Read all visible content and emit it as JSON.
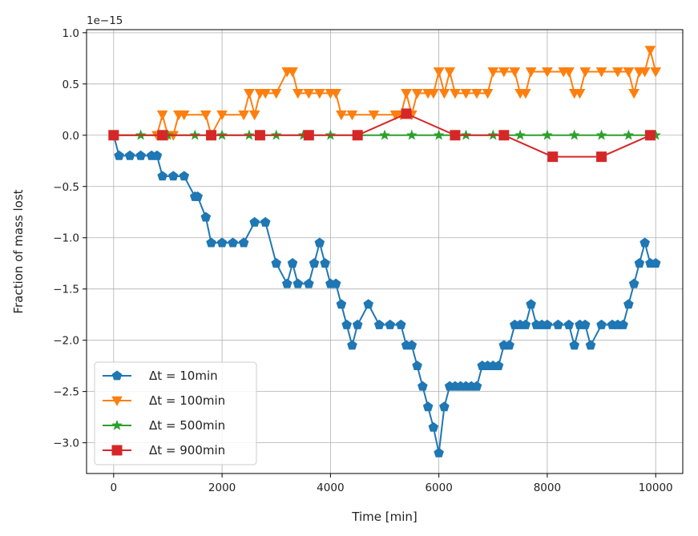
{
  "chart_data": {
    "type": "line",
    "xlabel": "Time [min]",
    "ylabel": "Fraction of mass lost",
    "offset_text": "1e−15",
    "xlim": [
      -500,
      10500
    ],
    "ylim": [
      -3.3,
      1.03
    ],
    "xticks": [
      0,
      2000,
      4000,
      6000,
      8000,
      10000
    ],
    "xtick_labels": [
      "0",
      "2000",
      "4000",
      "6000",
      "8000",
      "10000"
    ],
    "yticks": [
      1.0,
      0.5,
      0.0,
      -0.5,
      -1.0,
      -1.5,
      -2.0,
      -2.5,
      -3.0
    ],
    "ytick_labels": [
      "1.0",
      "0.5",
      "0.0",
      "−0.5",
      "−1.0",
      "−1.5",
      "−2.0",
      "−2.5",
      "−3.0"
    ],
    "grid": true,
    "legend_position": "lower-left",
    "series": [
      {
        "name": "Δt = 10min",
        "label_prefix": "Δt = ",
        "label_value": "10min",
        "color": "#1f77b4",
        "marker": "pentagon",
        "x": [
          0,
          100,
          300,
          500,
          700,
          800,
          900,
          1100,
          1300,
          1500,
          1550,
          1700,
          1800,
          2000,
          2200,
          2400,
          2600,
          2800,
          3000,
          3200,
          3300,
          3400,
          3600,
          3700,
          3800,
          3900,
          4000,
          4100,
          4200,
          4300,
          4400,
          4500,
          4700,
          4900,
          5100,
          5300,
          5400,
          5500,
          5600,
          5700,
          5800,
          5900,
          6000,
          6100,
          6200,
          6300,
          6400,
          6500,
          6600,
          6700,
          6800,
          6900,
          7000,
          7100,
          7200,
          7300,
          7400,
          7500,
          7600,
          7700,
          7800,
          7900,
          8000,
          8200,
          8400,
          8500,
          8600,
          8700,
          8800,
          9000,
          9200,
          9300,
          9400,
          9500,
          9600,
          9700,
          9800,
          9900,
          10000
        ],
        "y": [
          0.0,
          -0.2,
          -0.2,
          -0.2,
          -0.2,
          -0.2,
          -0.4,
          -0.4,
          -0.4,
          -0.6,
          -0.6,
          -0.8,
          -1.05,
          -1.05,
          -1.05,
          -1.05,
          -0.85,
          -0.85,
          -1.25,
          -1.45,
          -1.25,
          -1.45,
          -1.45,
          -1.25,
          -1.05,
          -1.25,
          -1.45,
          -1.45,
          -1.65,
          -1.85,
          -2.05,
          -1.85,
          -1.65,
          -1.85,
          -1.85,
          -1.85,
          -2.05,
          -2.05,
          -2.25,
          -2.45,
          -2.65,
          -2.85,
          -3.1,
          -2.65,
          -2.45,
          -2.45,
          -2.45,
          -2.45,
          -2.45,
          -2.45,
          -2.25,
          -2.25,
          -2.25,
          -2.25,
          -2.05,
          -2.05,
          -1.85,
          -1.85,
          -1.85,
          -1.65,
          -1.85,
          -1.85,
          -1.85,
          -1.85,
          -1.85,
          -2.05,
          -1.85,
          -1.85,
          -2.05,
          -1.85,
          -1.85,
          -1.85,
          -1.85,
          -1.65,
          -1.45,
          -1.25,
          -1.05,
          -1.25,
          -1.25
        ]
      },
      {
        "name": "Δt = 100min",
        "label_prefix": "Δt = ",
        "label_value": "100min",
        "color": "#ff7f0e",
        "marker": "triangle-down",
        "x": [
          0,
          800,
          900,
          1000,
          1100,
          1200,
          1300,
          1700,
          1800,
          2000,
          2400,
          2500,
          2600,
          2700,
          2800,
          3000,
          3200,
          3300,
          3400,
          3600,
          3800,
          4000,
          4100,
          4200,
          4400,
          4800,
          5200,
          5300,
          5400,
          5500,
          5600,
          5800,
          5900,
          6000,
          6100,
          6200,
          6300,
          6500,
          6700,
          6900,
          7000,
          7200,
          7400,
          7500,
          7600,
          7700,
          8000,
          8300,
          8400,
          8500,
          8600,
          8700,
          9000,
          9300,
          9500,
          9600,
          9700,
          9800,
          9900,
          10000
        ],
        "y": [
          0.0,
          0.0,
          0.2,
          0.0,
          0.0,
          0.2,
          0.2,
          0.2,
          0.0,
          0.2,
          0.2,
          0.41,
          0.2,
          0.41,
          0.41,
          0.41,
          0.62,
          0.62,
          0.41,
          0.41,
          0.41,
          0.41,
          0.41,
          0.2,
          0.2,
          0.2,
          0.2,
          0.2,
          0.41,
          0.2,
          0.41,
          0.41,
          0.41,
          0.62,
          0.41,
          0.62,
          0.41,
          0.41,
          0.41,
          0.41,
          0.62,
          0.62,
          0.62,
          0.41,
          0.41,
          0.62,
          0.62,
          0.62,
          0.62,
          0.41,
          0.41,
          0.62,
          0.62,
          0.62,
          0.62,
          0.41,
          0.62,
          0.62,
          0.83,
          0.62
        ]
      },
      {
        "name": "Δt = 500min",
        "label_prefix": "Δt = ",
        "label_value": "500min",
        "color": "#2ca02c",
        "marker": "star",
        "x": [
          0,
          500,
          1000,
          1500,
          2000,
          2500,
          3000,
          3500,
          4000,
          4500,
          5000,
          5500,
          6000,
          6500,
          7000,
          7500,
          8000,
          8500,
          9000,
          9500,
          10000
        ],
        "y": [
          0,
          0,
          0,
          0,
          0,
          0,
          0,
          0,
          0,
          0,
          0,
          0,
          0,
          0,
          0,
          0,
          0,
          0,
          0,
          0,
          0
        ]
      },
      {
        "name": "Δt = 900min",
        "label_prefix": "Δt = ",
        "label_value": "900min",
        "color": "#d62728",
        "marker": "square",
        "x": [
          0,
          900,
          1800,
          2700,
          3600,
          4500,
          5400,
          6300,
          7200,
          8100,
          9000,
          9900
        ],
        "y": [
          0,
          0,
          0,
          0,
          0,
          0,
          0.21,
          0,
          0,
          -0.21,
          -0.21,
          0
        ]
      }
    ]
  }
}
